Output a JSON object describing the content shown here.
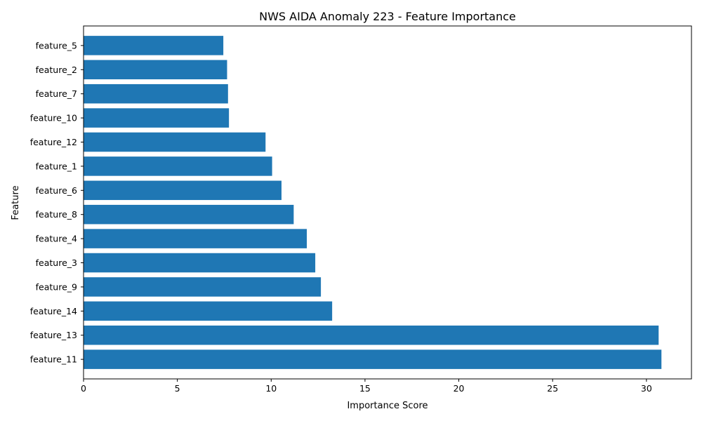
{
  "chart_data": {
    "type": "bar",
    "orientation": "horizontal",
    "title": "NWS AIDA Anomaly 223 - Feature Importance",
    "xlabel": "Importance Score",
    "ylabel": "Feature",
    "xlim": [
      0,
      32.4
    ],
    "xticks": [
      0,
      5,
      10,
      15,
      20,
      25,
      30
    ],
    "grid": false,
    "legend": false,
    "bar_color": "#1f77b4",
    "categories": [
      "feature_5",
      "feature_2",
      "feature_7",
      "feature_10",
      "feature_12",
      "feature_1",
      "feature_6",
      "feature_8",
      "feature_4",
      "feature_3",
      "feature_9",
      "feature_14",
      "feature_13",
      "feature_11"
    ],
    "values": [
      7.45,
      7.65,
      7.7,
      7.75,
      9.7,
      10.05,
      10.55,
      11.2,
      11.9,
      12.35,
      12.65,
      13.25,
      30.65,
      30.8
    ]
  }
}
